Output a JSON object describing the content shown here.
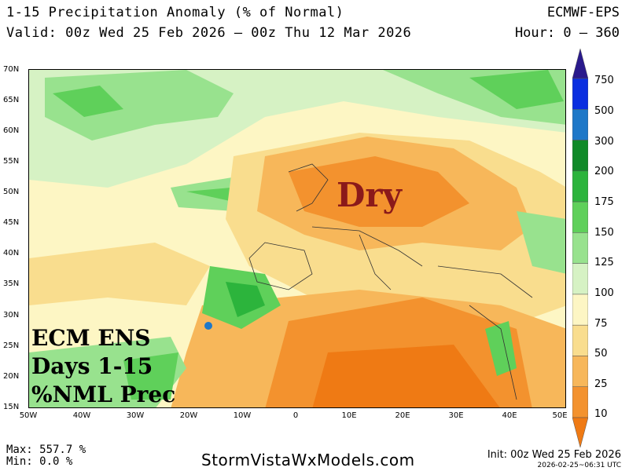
{
  "header": {
    "title": "1-15 Precipitation Anomaly (% of Normal)",
    "valid": "Valid: 00z Wed 25 Feb 2026 – 00z Thu 12 Mar 2026",
    "model": "ECMWF-EPS",
    "hours": "Hour: 0 – 360"
  },
  "map": {
    "lat_labels": [
      "70N",
      "65N",
      "60N",
      "55N",
      "50N",
      "45N",
      "40N",
      "35N",
      "30N",
      "25N",
      "20N",
      "15N"
    ],
    "lon_labels": [
      "50W",
      "40W",
      "30W",
      "20W",
      "10W",
      "0",
      "10E",
      "20E",
      "30E",
      "40E",
      "50E"
    ],
    "overlay_dry": "Dry",
    "overlay_lines": [
      "ECM ENS",
      "Days 1-15",
      "%NML Prec"
    ]
  },
  "colorbar": {
    "labels": [
      "750",
      "500",
      "300",
      "200",
      "175",
      "150",
      "125",
      "100",
      "75",
      "50",
      "25",
      "10"
    ],
    "colors": [
      "#2a1a8c",
      "#0a2ee0",
      "#1e78c8",
      "#108a28",
      "#2cb43c",
      "#5fd05a",
      "#98e28e",
      "#d6f2c4",
      "#fdf6c4",
      "#f9dd8e",
      "#f7b75a",
      "#f3922e",
      "#ef7a14"
    ]
  },
  "footer": {
    "max": "Max: 557.7 %",
    "min": "Min: 0.0 %",
    "site": "StormVistaWxModels.com",
    "init": "Init: 00z Wed 25 Feb 2026",
    "stamp": "2026-02-25~06:31 UTC"
  }
}
